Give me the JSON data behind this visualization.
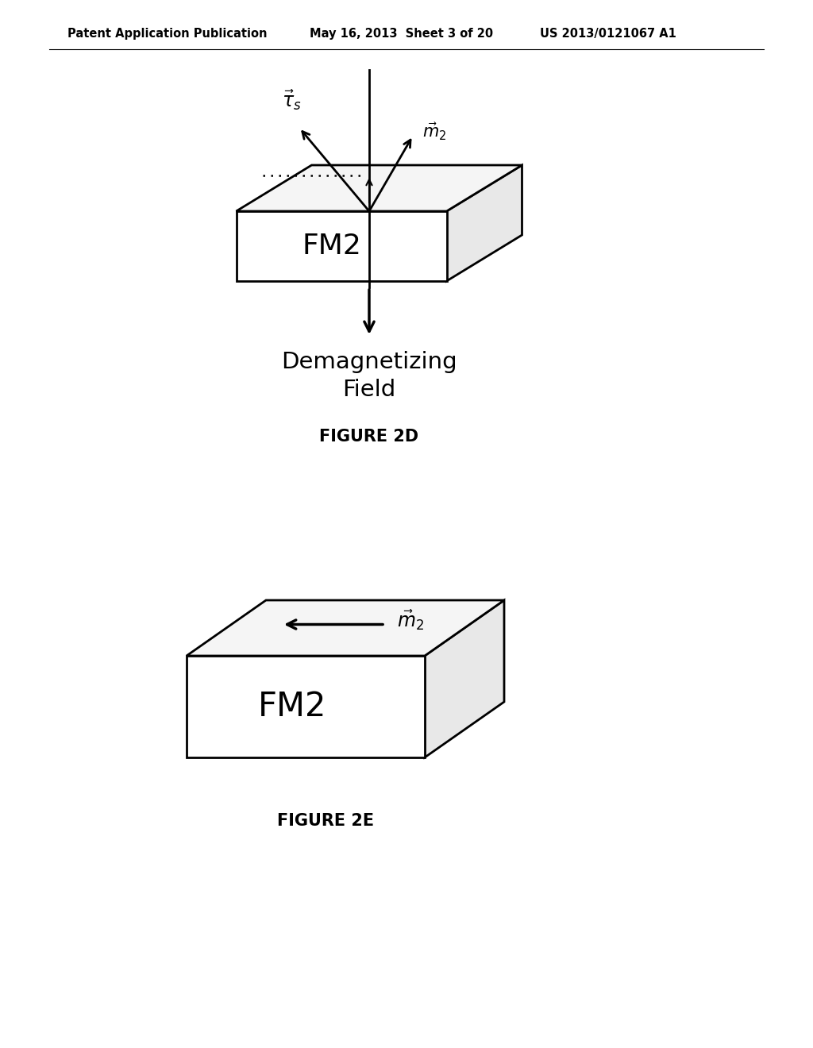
{
  "bg_color": "#ffffff",
  "header_left": "Patent Application Publication",
  "header_mid": "May 16, 2013  Sheet 3 of 20",
  "header_right": "US 2013/0121067 A1",
  "line_color": "#000000",
  "text_color": "#000000",
  "fig2d_fm2_label": "FM2",
  "fig2d_caption": "FIGURE 2D",
  "fig2d_demag_text": "Demagnetizing\nField",
  "fig2e_fm2_label": "FM2",
  "fig2e_caption": "FIGURE 2E"
}
